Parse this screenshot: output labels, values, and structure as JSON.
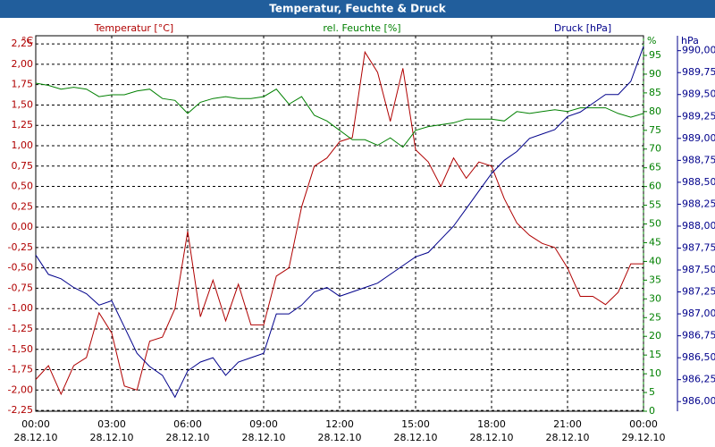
{
  "chart_data": {
    "type": "line",
    "title": "Temperatur, Feuchte & Druck",
    "ylabel": "°C",
    "y2label": "%",
    "y3label": "hPa",
    "grid": true,
    "x": [
      0,
      0.5,
      1,
      1.5,
      2,
      2.5,
      3,
      3.5,
      4,
      4.5,
      5,
      5.5,
      6,
      6.5,
      7,
      7.5,
      8,
      8.5,
      9,
      9.5,
      10,
      10.5,
      11,
      11.5,
      12,
      12.5,
      13,
      13.5,
      14,
      14.5,
      15,
      15.5,
      16,
      16.5,
      17,
      17.5,
      18,
      18.5,
      19,
      19.5,
      20,
      20.5,
      21,
      21.5,
      22,
      22.5,
      23,
      23.5,
      24
    ],
    "xlim": [
      0,
      24
    ],
    "xticks": [
      {
        "value": 0,
        "label": "00:00",
        "date": "28.12.10"
      },
      {
        "value": 3,
        "label": "03:00",
        "date": "28.12.10"
      },
      {
        "value": 6,
        "label": "06:00",
        "date": "28.12.10"
      },
      {
        "value": 9,
        "label": "09:00",
        "date": "28.12.10"
      },
      {
        "value": 12,
        "label": "12:00",
        "date": "28.12.10"
      },
      {
        "value": 15,
        "label": "15:00",
        "date": "28.12.10"
      },
      {
        "value": 18,
        "label": "18:00",
        "date": "28.12.10"
      },
      {
        "value": 21,
        "label": "21:00",
        "date": "28.12.10"
      },
      {
        "value": 24,
        "label": "00:00",
        "date": "29.12.10"
      }
    ],
    "ylim": [
      -2.26,
      2.35
    ],
    "yticks": [
      {
        "value": -2.25,
        "label": "-2,25"
      },
      {
        "value": -2,
        "label": "-2,00"
      },
      {
        "value": -1.75,
        "label": "-1,75"
      },
      {
        "value": -1.5,
        "label": "-1,50"
      },
      {
        "value": -1.25,
        "label": "-1,25"
      },
      {
        "value": -1,
        "label": "-1,00"
      },
      {
        "value": -0.75,
        "label": "-0,75"
      },
      {
        "value": -0.5,
        "label": "-0,50"
      },
      {
        "value": -0.25,
        "label": "-0,25"
      },
      {
        "value": 0,
        "label": "0,00"
      },
      {
        "value": 0.25,
        "label": "0,25"
      },
      {
        "value": 0.5,
        "label": "0,50"
      },
      {
        "value": 0.75,
        "label": "0,75"
      },
      {
        "value": 1,
        "label": "1,00"
      },
      {
        "value": 1.25,
        "label": "1,25"
      },
      {
        "value": 1.5,
        "label": "1,50"
      },
      {
        "value": 1.75,
        "label": "1,75"
      },
      {
        "value": 2,
        "label": "2,00"
      },
      {
        "value": 2.25,
        "label": "2,25"
      }
    ],
    "y2lim": [
      0,
      100.25
    ],
    "y2ticks": [
      0,
      5,
      10,
      15,
      20,
      25,
      30,
      35,
      40,
      45,
      50,
      55,
      60,
      65,
      70,
      75,
      80,
      85,
      90,
      95
    ],
    "y3lim": [
      985.89,
      990.17
    ],
    "y3ticks": [
      {
        "value": 986,
        "label": "986,00"
      },
      {
        "value": 986.25,
        "label": "986,25"
      },
      {
        "value": 986.5,
        "label": "986,50"
      },
      {
        "value": 986.75,
        "label": "986,75"
      },
      {
        "value": 987,
        "label": "987,00"
      },
      {
        "value": 987.25,
        "label": "987,25"
      },
      {
        "value": 987.5,
        "label": "987,50"
      },
      {
        "value": 987.75,
        "label": "987,75"
      },
      {
        "value": 988,
        "label": "988,00"
      },
      {
        "value": 988.25,
        "label": "988,25"
      },
      {
        "value": 988.5,
        "label": "988,50"
      },
      {
        "value": 988.75,
        "label": "988,75"
      },
      {
        "value": 989,
        "label": "989,00"
      },
      {
        "value": 989.25,
        "label": "989,25"
      },
      {
        "value": 989.5,
        "label": "989,50"
      },
      {
        "value": 989.75,
        "label": "989,75"
      },
      {
        "value": 990,
        "label": "990,00"
      }
    ],
    "series": [
      {
        "name": "Temperatur [°C]",
        "color": "#b00000",
        "axis": "y",
        "values": [
          -1.87,
          -1.7,
          -2.05,
          -1.7,
          -1.6,
          -1.05,
          -1.3,
          -1.95,
          -2.0,
          -1.4,
          -1.35,
          -1.0,
          -0.05,
          -1.1,
          -0.65,
          -1.15,
          -0.7,
          -1.2,
          -1.2,
          -0.6,
          -0.5,
          0.25,
          0.75,
          0.85,
          1.05,
          1.1,
          2.15,
          1.9,
          1.3,
          1.95,
          0.95,
          0.8,
          0.5,
          0.85,
          0.6,
          0.8,
          0.75,
          0.35,
          0.05,
          -0.1,
          -0.2,
          -0.25,
          -0.5,
          -0.85,
          -0.85,
          -0.95,
          -0.8,
          -0.45,
          -0.45
        ]
      },
      {
        "name": "rel. Feuchte [%]",
        "color": "#008000",
        "axis": "y2",
        "values": [
          87.6,
          87,
          86,
          86.5,
          86,
          84,
          84.5,
          84.5,
          85.5,
          86,
          83.5,
          83,
          79.5,
          82.5,
          83.5,
          84,
          83.5,
          83.5,
          84,
          86,
          82,
          84,
          79,
          77.5,
          75,
          72.5,
          72.5,
          71,
          73,
          70.5,
          75,
          76,
          76.5,
          77,
          78,
          78,
          78,
          77.5,
          80,
          79.5,
          80,
          80.5,
          80,
          81,
          81,
          81,
          79.5,
          78.5,
          79.5
        ]
      },
      {
        "name": "Druck [hPa]",
        "color": "#00008b",
        "axis": "y3",
        "values": [
          987.67,
          987.45,
          987.4,
          987.3,
          987.23,
          987.1,
          987.15,
          986.85,
          986.55,
          986.4,
          986.3,
          986.05,
          986.35,
          986.45,
          986.5,
          986.3,
          986.45,
          986.5,
          986.55,
          987.0,
          987.0,
          987.1,
          987.25,
          987.3,
          987.2,
          987.25,
          987.3,
          987.35,
          987.45,
          987.55,
          987.65,
          987.7,
          987.85,
          988.0,
          988.2,
          988.4,
          988.6,
          988.75,
          988.85,
          989.0,
          989.05,
          989.1,
          989.25,
          989.3,
          989.4,
          989.5,
          989.5,
          989.65,
          990.05
        ]
      }
    ]
  }
}
